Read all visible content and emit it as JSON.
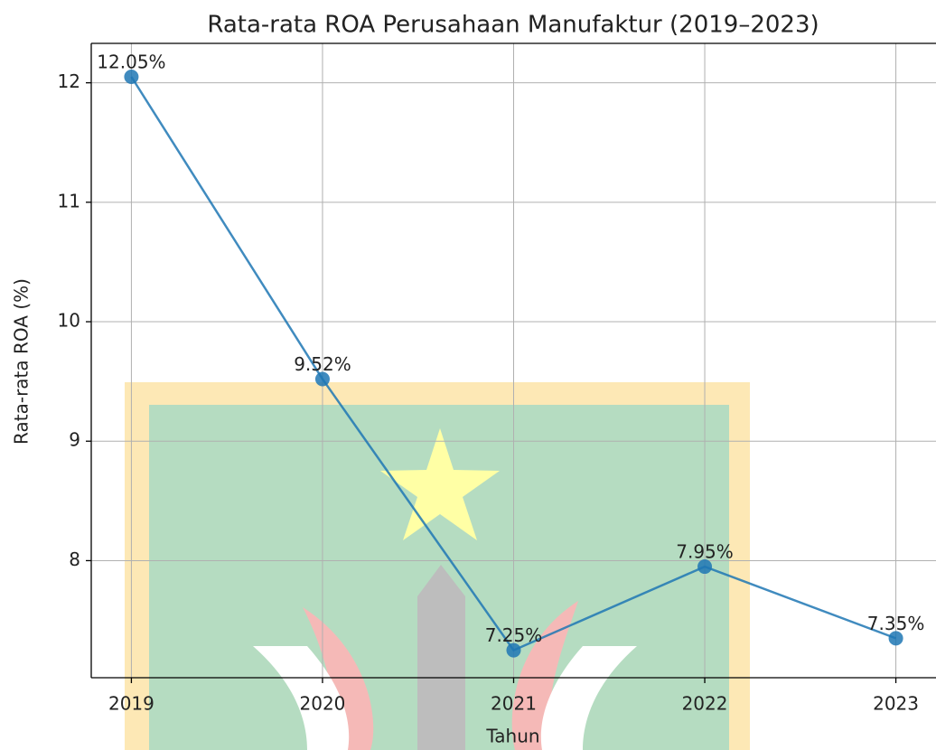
{
  "chart_data": {
    "type": "line",
    "title": "Rata-rata ROA Perusahaan Manufaktur (2019–2023)",
    "xlabel": "Tahun",
    "ylabel": "Rata-rata ROA (%)",
    "x": [
      2019,
      2020,
      2021,
      2022,
      2023
    ],
    "values": [
      12.05,
      9.52,
      7.25,
      7.95,
      7.35
    ],
    "value_labels": [
      "12.05%",
      "9.52%",
      "7.25%",
      "7.95%",
      "7.35%"
    ],
    "color": "#1f77b4",
    "xlim": [
      2018.79,
      2023.21
    ],
    "xticks": [
      2019,
      2020,
      2021,
      2022,
      2023
    ],
    "ylim": [
      7.02,
      12.33
    ],
    "yticks": [
      8,
      9,
      10,
      11,
      12
    ],
    "grid": true
  }
}
